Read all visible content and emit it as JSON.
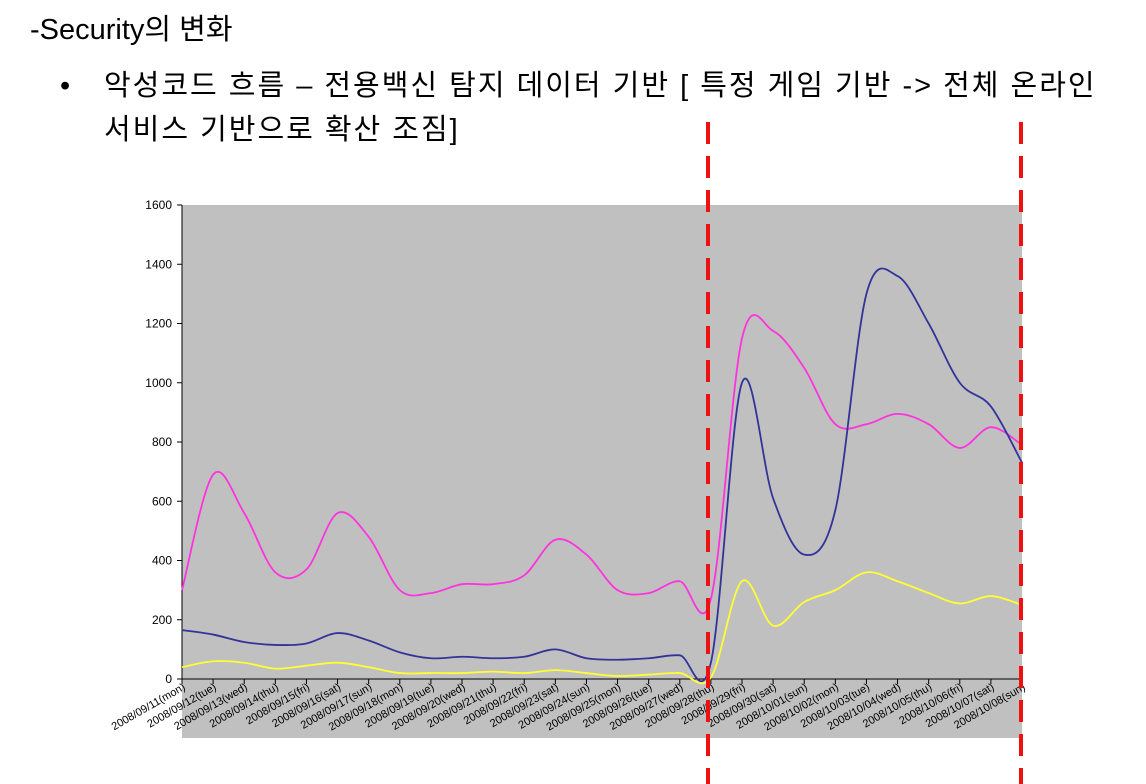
{
  "heading": "-Security의 변화",
  "bullet": "악성코드 흐름 – 전용백신 탐지 데이터 기반 [ 특정 게임 기반 -> 전체 온라인 서비스 기반으로 확산 조짐]",
  "chart_data": {
    "type": "line",
    "categories": [
      "2008/09/11(mon)",
      "2008/09/12(tue)",
      "2008/09/13(wed)",
      "2008/09/14(thu)",
      "2008/09/15(fri)",
      "2008/09/16(sat)",
      "2008/09/17(sun)",
      "2008/09/18(mon)",
      "2008/09/19(tue)",
      "2008/09/20(wed)",
      "2008/09/21(thu)",
      "2008/09/22(fri)",
      "2008/09/23(sat)",
      "2008/09/24(sun)",
      "2008/09/25(mon)",
      "2008/09/26(tue)",
      "2008/09/27(wed)",
      "2008/09/28(thu)",
      "2008/09/29(fri)",
      "2008/09/30(sat)",
      "2008/10/01(sun)",
      "2008/10/02(mon)",
      "2008/10/03(tue)",
      "2008/10/04(wed)",
      "2008/10/05(thu)",
      "2008/10/06(fri)",
      "2008/10/07(sat)",
      "2008/10/08(sun)"
    ],
    "series": [
      {
        "color": "#ff33dd",
        "values": [
          300,
          690,
          560,
          360,
          370,
          560,
          480,
          300,
          290,
          320,
          320,
          350,
          470,
          420,
          300,
          290,
          330,
          270,
          1150,
          1175,
          1050,
          860,
          860,
          895,
          860,
          780,
          850,
          790
        ]
      },
      {
        "color": "#333399",
        "values": [
          165,
          150,
          125,
          115,
          120,
          155,
          130,
          90,
          70,
          75,
          70,
          75,
          100,
          70,
          65,
          70,
          80,
          55,
          1000,
          610,
          420,
          570,
          1300,
          1360,
          1200,
          1000,
          920,
          730
        ]
      },
      {
        "color": "#ffff33",
        "values": [
          40,
          60,
          55,
          35,
          45,
          55,
          40,
          20,
          20,
          20,
          25,
          20,
          30,
          20,
          10,
          15,
          20,
          5,
          330,
          180,
          260,
          300,
          360,
          330,
          290,
          255,
          280,
          250
        ]
      }
    ],
    "ylim": [
      0,
      1600
    ],
    "yticks": [
      0,
      200,
      400,
      600,
      800,
      1000,
      1200,
      1400,
      1600
    ],
    "plot_background": "#c0c0c0"
  }
}
